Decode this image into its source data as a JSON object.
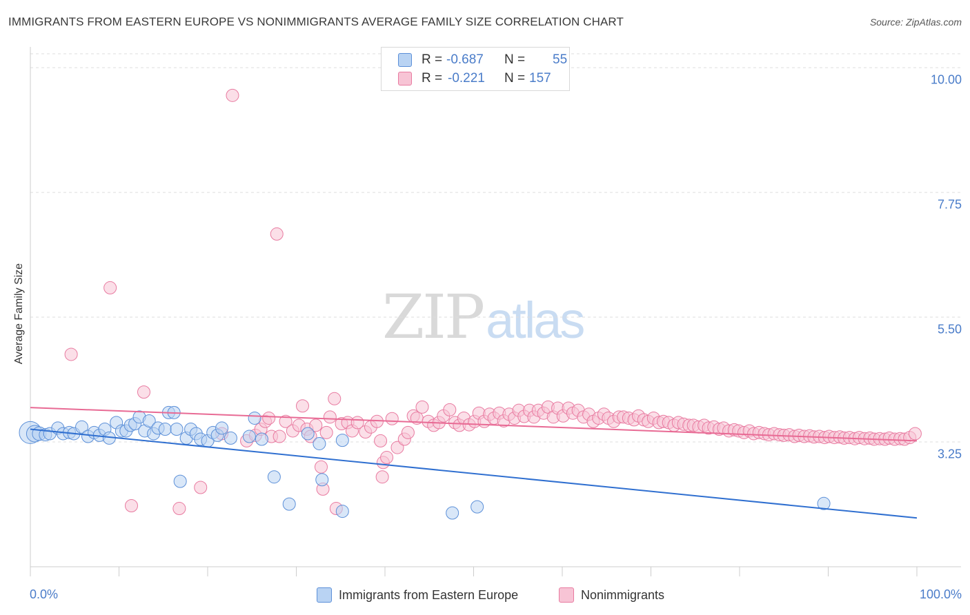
{
  "title": "IMMIGRANTS FROM EASTERN EUROPE VS NONIMMIGRANTS AVERAGE FAMILY SIZE CORRELATION CHART",
  "source": "Source: ZipAtlas.com",
  "watermark": {
    "zip": "ZIP",
    "atlas": "atlas"
  },
  "colors": {
    "blue": "#5b8fd8",
    "blue_fill": "#b9d3f3",
    "blue_line": "#2f6fd0",
    "pink": "#e87aa0",
    "pink_fill": "#f7c4d5",
    "pink_line": "#e86a94",
    "tick_text": "#4a7cc9",
    "grid": "#dddddd"
  },
  "stats": {
    "rows": [
      {
        "r_label": "R =",
        "r_value": "-0.687",
        "n_label": "N =",
        "n_value": "55"
      },
      {
        "r_label": "R =",
        "r_value": "-0.221",
        "n_label": "N =",
        "n_value": "157"
      }
    ]
  },
  "legend": {
    "series1": "Immigrants from Eastern Europe",
    "series2": "Nonimmigrants"
  },
  "chart_data": {
    "type": "scatter",
    "title": "IMMIGRANTS FROM EASTERN EUROPE VS NONIMMIGRANTS AVERAGE FAMILY SIZE CORRELATION CHART",
    "xlabel": "",
    "ylabel": "Average Family Size",
    "xlim": [
      0,
      100
    ],
    "ylim": [
      1.0,
      10.25
    ],
    "xtick_labels": [
      "0.0%",
      "100.0%"
    ],
    "yticks": [
      3.25,
      5.5,
      7.75,
      10.0
    ],
    "ytick_labels": [
      "3.25",
      "5.50",
      "7.75",
      "10.00"
    ],
    "grid": true,
    "legend_position": "bottom-center",
    "series": [
      {
        "name": "Immigrants from Eastern Europe",
        "trend": {
          "x": [
            0,
            100
          ],
          "y": [
            3.48,
            1.88
          ]
        },
        "points": [
          [
            0,
            3.42,
            16
          ],
          [
            0.5,
            3.4,
            12
          ],
          [
            1,
            3.4,
            10
          ],
          [
            1.7,
            3.38,
            9
          ],
          [
            2.2,
            3.4,
            9
          ],
          [
            3.1,
            3.5,
            9
          ],
          [
            3.7,
            3.4,
            9
          ],
          [
            4.4,
            3.42,
            9
          ],
          [
            4.9,
            3.4,
            9
          ],
          [
            5.8,
            3.52,
            9
          ],
          [
            6.5,
            3.35,
            9
          ],
          [
            7.2,
            3.42,
            9
          ],
          [
            7.8,
            3.37,
            9
          ],
          [
            8.4,
            3.48,
            9
          ],
          [
            8.9,
            3.32,
            9
          ],
          [
            9.7,
            3.6,
            9
          ],
          [
            10.3,
            3.45,
            9
          ],
          [
            10.8,
            3.45,
            9
          ],
          [
            11.3,
            3.55,
            9
          ],
          [
            11.8,
            3.58,
            9
          ],
          [
            12.3,
            3.7,
            9
          ],
          [
            12.9,
            3.45,
            9
          ],
          [
            13.4,
            3.63,
            9
          ],
          [
            13.9,
            3.4,
            9
          ],
          [
            14.4,
            3.5,
            9
          ],
          [
            15.2,
            3.48,
            9
          ],
          [
            15.6,
            3.78,
            9
          ],
          [
            16.2,
            3.78,
            9
          ],
          [
            16.5,
            3.48,
            9
          ],
          [
            16.9,
            2.54,
            9
          ],
          [
            17.6,
            3.32,
            9
          ],
          [
            18.1,
            3.48,
            9
          ],
          [
            18.7,
            3.4,
            9
          ],
          [
            19.2,
            3.3,
            9
          ],
          [
            20.0,
            3.27,
            9
          ],
          [
            20.6,
            3.42,
            9
          ],
          [
            21.1,
            3.37,
            9
          ],
          [
            21.6,
            3.5,
            9
          ],
          [
            22.6,
            3.32,
            9
          ],
          [
            24.7,
            3.35,
            9
          ],
          [
            25.3,
            3.68,
            9
          ],
          [
            26.1,
            3.3,
            9
          ],
          [
            27.5,
            2.62,
            9
          ],
          [
            29.2,
            2.13,
            9
          ],
          [
            31.3,
            3.4,
            9
          ],
          [
            32.6,
            3.22,
            9
          ],
          [
            32.9,
            2.57,
            9
          ],
          [
            35.2,
            3.28,
            9
          ],
          [
            35.2,
            2.0,
            9
          ],
          [
            47.6,
            1.97,
            9
          ],
          [
            50.4,
            2.08,
            9
          ],
          [
            89.5,
            2.14,
            9
          ]
        ]
      },
      {
        "name": "Nonimmigrants",
        "trend": {
          "x": [
            0,
            100
          ],
          "y": [
            3.87,
            3.27
          ]
        },
        "points": [
          [
            22.8,
            9.5,
            9
          ],
          [
            27.8,
            7.0,
            9
          ],
          [
            9.0,
            6.03,
            9
          ],
          [
            4.6,
            4.83,
            9
          ],
          [
            12.8,
            4.15,
            9
          ],
          [
            11.4,
            2.1,
            9
          ],
          [
            16.8,
            2.05,
            9
          ],
          [
            19.2,
            2.43,
            9
          ],
          [
            21.6,
            3.4,
            9
          ],
          [
            24.4,
            3.27,
            9
          ],
          [
            25.4,
            3.37,
            9
          ],
          [
            26.0,
            3.48,
            9
          ],
          [
            26.5,
            3.62,
            9
          ],
          [
            26.9,
            3.68,
            9
          ],
          [
            27.2,
            3.35,
            9
          ],
          [
            28.1,
            3.35,
            9
          ],
          [
            28.8,
            3.62,
            9
          ],
          [
            29.6,
            3.45,
            9
          ],
          [
            30.3,
            3.55,
            9
          ],
          [
            30.7,
            3.9,
            9
          ],
          [
            31.2,
            3.48,
            9
          ],
          [
            31.6,
            3.35,
            9
          ],
          [
            32.2,
            3.55,
            9
          ],
          [
            32.8,
            2.8,
            9
          ],
          [
            33.4,
            3.42,
            9
          ],
          [
            33.8,
            3.7,
            9
          ],
          [
            34.3,
            4.03,
            9
          ],
          [
            35.1,
            3.58,
            9
          ],
          [
            35.8,
            3.6,
            9
          ],
          [
            36.3,
            3.45,
            9
          ],
          [
            36.9,
            3.6,
            9
          ],
          [
            37.8,
            3.43,
            9
          ],
          [
            38.4,
            3.52,
            9
          ],
          [
            39.1,
            3.62,
            9
          ],
          [
            39.5,
            3.27,
            9
          ],
          [
            39.8,
            2.88,
            9
          ],
          [
            40.2,
            2.97,
            9
          ],
          [
            40.8,
            3.67,
            9
          ],
          [
            41.4,
            3.15,
            9
          ],
          [
            42.2,
            3.3,
            9
          ],
          [
            42.6,
            3.42,
            9
          ],
          [
            43.2,
            3.72,
            9
          ],
          [
            43.6,
            3.68,
            9
          ],
          [
            44.2,
            3.88,
            9
          ],
          [
            44.9,
            3.62,
            9
          ],
          [
            45.5,
            3.55,
            9
          ],
          [
            46.1,
            3.6,
            9
          ],
          [
            46.6,
            3.72,
            9
          ],
          [
            47.3,
            3.83,
            9
          ],
          [
            47.9,
            3.6,
            9
          ],
          [
            48.4,
            3.55,
            9
          ],
          [
            48.9,
            3.68,
            9
          ],
          [
            49.5,
            3.56,
            9
          ],
          [
            50.1,
            3.62,
            9
          ],
          [
            50.6,
            3.77,
            9
          ],
          [
            51.2,
            3.62,
            9
          ],
          [
            51.8,
            3.75,
            9
          ],
          [
            52.3,
            3.68,
            9
          ],
          [
            52.9,
            3.77,
            9
          ],
          [
            53.4,
            3.63,
            9
          ],
          [
            54.0,
            3.75,
            9
          ],
          [
            54.6,
            3.68,
            9
          ],
          [
            55.1,
            3.82,
            9
          ],
          [
            55.7,
            3.71,
            9
          ],
          [
            56.3,
            3.82,
            9
          ],
          [
            56.8,
            3.7,
            9
          ],
          [
            57.3,
            3.82,
            9
          ],
          [
            57.9,
            3.77,
            9
          ],
          [
            58.4,
            3.88,
            9
          ],
          [
            59.0,
            3.7,
            9
          ],
          [
            59.5,
            3.86,
            9
          ],
          [
            60.1,
            3.72,
            9
          ],
          [
            60.7,
            3.86,
            9
          ],
          [
            61.2,
            3.77,
            9
          ],
          [
            61.8,
            3.82,
            9
          ],
          [
            62.4,
            3.7,
            9
          ],
          [
            63.0,
            3.75,
            9
          ],
          [
            63.5,
            3.62,
            9
          ],
          [
            64.1,
            3.68,
            9
          ],
          [
            64.7,
            3.75,
            9
          ],
          [
            65.2,
            3.68,
            9
          ],
          [
            65.8,
            3.62,
            9
          ],
          [
            66.4,
            3.7,
            9
          ],
          [
            66.9,
            3.7,
            9
          ],
          [
            67.5,
            3.68,
            9
          ],
          [
            68.1,
            3.65,
            9
          ],
          [
            68.6,
            3.72,
            9
          ],
          [
            69.2,
            3.65,
            9
          ],
          [
            69.7,
            3.62,
            9
          ],
          [
            70.3,
            3.68,
            9
          ],
          [
            70.9,
            3.6,
            9
          ],
          [
            71.4,
            3.62,
            9
          ],
          [
            72.0,
            3.6,
            9
          ],
          [
            72.6,
            3.55,
            9
          ],
          [
            73.1,
            3.6,
            9
          ],
          [
            73.7,
            3.57,
            9
          ],
          [
            74.3,
            3.55,
            9
          ],
          [
            74.8,
            3.55,
            9
          ],
          [
            75.4,
            3.52,
            9
          ],
          [
            76.0,
            3.55,
            9
          ],
          [
            76.5,
            3.5,
            9
          ],
          [
            77.1,
            3.52,
            9
          ],
          [
            77.7,
            3.48,
            9
          ],
          [
            78.2,
            3.5,
            9
          ],
          [
            78.8,
            3.45,
            9
          ],
          [
            79.4,
            3.47,
            9
          ],
          [
            79.9,
            3.45,
            9
          ],
          [
            80.5,
            3.42,
            9
          ],
          [
            81.1,
            3.45,
            9
          ],
          [
            81.6,
            3.4,
            9
          ],
          [
            82.2,
            3.42,
            9
          ],
          [
            82.8,
            3.4,
            9
          ],
          [
            83.3,
            3.38,
            9
          ],
          [
            83.9,
            3.4,
            9
          ],
          [
            84.5,
            3.38,
            9
          ],
          [
            85.0,
            3.37,
            9
          ],
          [
            85.6,
            3.38,
            9
          ],
          [
            86.2,
            3.35,
            9
          ],
          [
            86.7,
            3.37,
            9
          ],
          [
            87.3,
            3.35,
            9
          ],
          [
            87.9,
            3.36,
            9
          ],
          [
            88.4,
            3.34,
            9
          ],
          [
            89.0,
            3.35,
            9
          ],
          [
            89.6,
            3.33,
            9
          ],
          [
            90.1,
            3.35,
            9
          ],
          [
            90.7,
            3.33,
            9
          ],
          [
            91.3,
            3.34,
            9
          ],
          [
            91.8,
            3.32,
            9
          ],
          [
            92.4,
            3.33,
            9
          ],
          [
            93.0,
            3.31,
            9
          ],
          [
            93.5,
            3.33,
            9
          ],
          [
            94.1,
            3.31,
            9
          ],
          [
            94.7,
            3.32,
            9
          ],
          [
            95.2,
            3.3,
            9
          ],
          [
            95.8,
            3.31,
            9
          ],
          [
            96.4,
            3.3,
            9
          ],
          [
            96.9,
            3.32,
            9
          ],
          [
            97.5,
            3.3,
            9
          ],
          [
            98.1,
            3.31,
            9
          ],
          [
            98.6,
            3.3,
            9
          ],
          [
            99.2,
            3.33,
            9
          ],
          [
            99.8,
            3.4,
            9
          ],
          [
            34.5,
            2.05,
            9
          ],
          [
            33.0,
            2.4,
            9
          ],
          [
            39.7,
            2.62,
            9
          ]
        ]
      }
    ]
  }
}
